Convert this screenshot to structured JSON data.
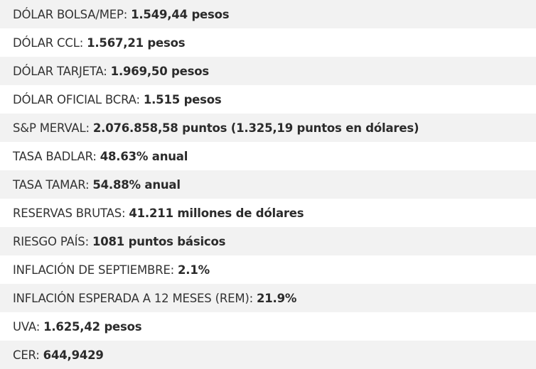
{
  "items": [
    {
      "label": "DÓLAR BOLSA/MEP:",
      "value": "1.549,44 pesos"
    },
    {
      "label": "DÓLAR CCL:",
      "value": "1.567,21 pesos"
    },
    {
      "label": "DÓLAR TARJETA:",
      "value": "1.969,50 pesos"
    },
    {
      "label": "DÓLAR OFICIAL BCRA:",
      "value": "1.515 pesos"
    },
    {
      "label": "S&P MERVAL:",
      "value": "2.076.858,58 puntos (1.325,19 puntos en dólares)"
    },
    {
      "label": "TASA BADLAR:",
      "value": "48.63% anual"
    },
    {
      "label": "TASA TAMAR:",
      "value": "54.88% anual"
    },
    {
      "label": "RESERVAS BRUTAS:",
      "value": "41.211 millones de dólares"
    },
    {
      "label": "RIESGO PAÍS:",
      "value": "1081 puntos básicos"
    },
    {
      "label": "INFLACIÓN DE SEPTIEMBRE:",
      "value": "2.1%"
    },
    {
      "label": "INFLACIÓN ESPERADA A 12 MESES (REM):",
      "value": "21.9%"
    },
    {
      "label": "UVA:",
      "value": "1.625,42 pesos"
    },
    {
      "label": "CER:",
      "value": "644,9429"
    }
  ]
}
